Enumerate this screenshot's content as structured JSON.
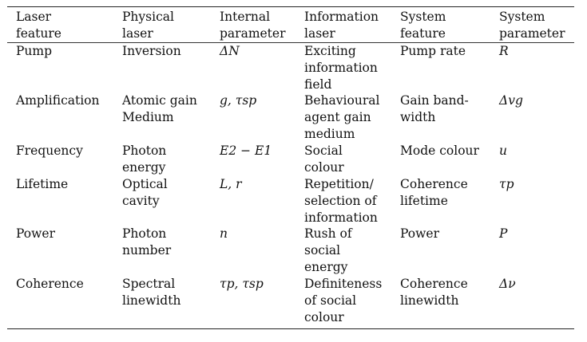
{
  "headers": [
    "Laser\nfeature",
    "Physical\nlaser",
    "Internal\nparameter",
    "Information\nlaser",
    "System\nfeature",
    "System\nparameter"
  ],
  "rows": [
    [
      "Pump",
      "Inversion",
      "ΔN",
      "Exciting\ninformation\nfield",
      "Pump rate",
      "R"
    ],
    [
      "Amplification",
      "Atomic gain\nMedium",
      "g,  τsp",
      "Behavioural\nagent gain\nmedium",
      "Gain band-\nwidth",
      "Δvg"
    ],
    [
      "Frequency",
      "Photon\nenergy",
      "E2 − E1",
      "Social\ncolour",
      "Mode colour",
      "u"
    ],
    [
      "Lifetime",
      "Optical\ncavity",
      "L,  r",
      "Repetition/\nselection of\ninformation",
      "Coherence\nlifetime",
      "τp"
    ],
    [
      "Power",
      "Photon\nnumber",
      "n",
      "Rush of\nsocial\nenergy",
      "Power",
      "P"
    ],
    [
      "Coherence",
      "Spectral\nlinewidth",
      "τp,  τsp",
      "Definiteness\nof social\ncolour",
      "Coherence\nlinewidth",
      "Δν"
    ]
  ]
}
